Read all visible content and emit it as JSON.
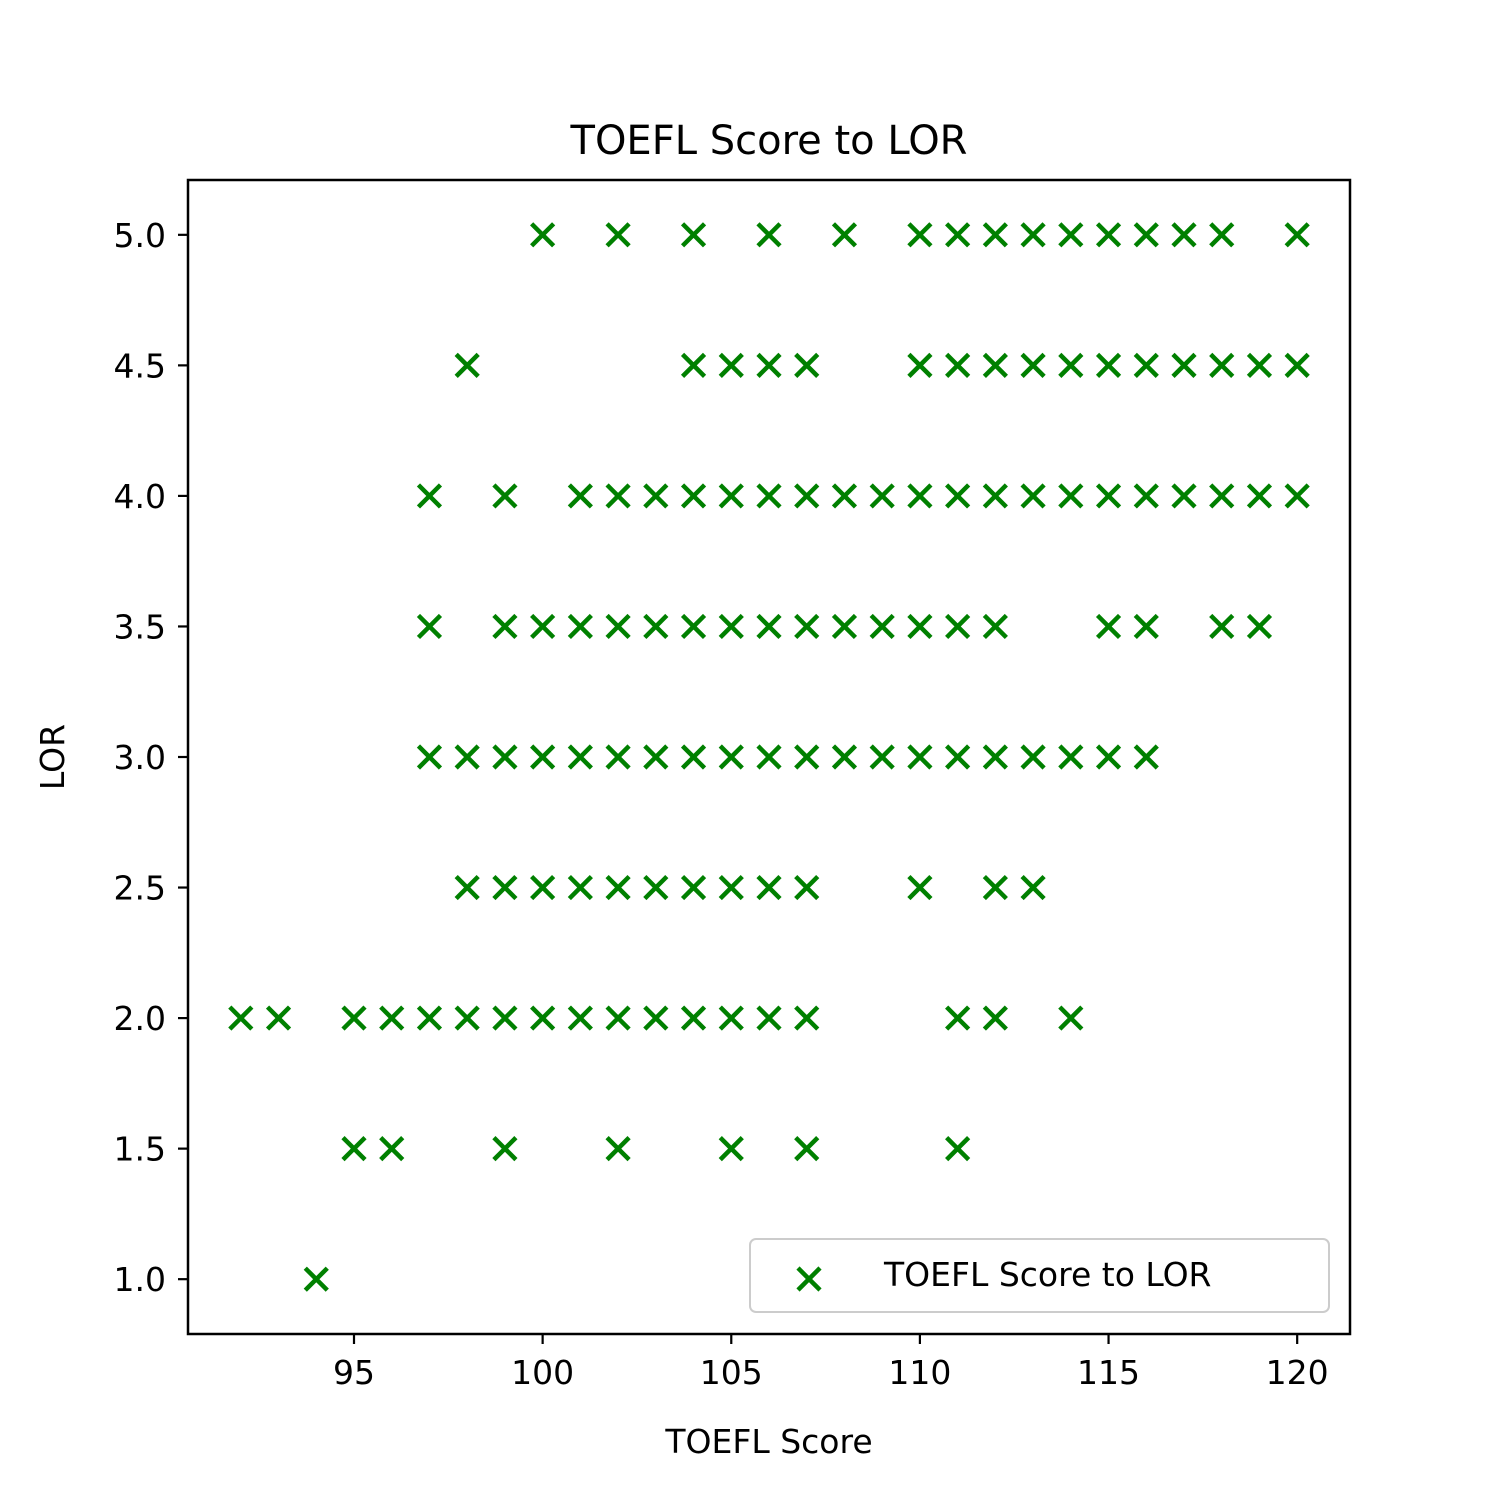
{
  "chart_data": {
    "type": "scatter",
    "title": "TOEFL Score to LOR",
    "xlabel": "TOEFL Score",
    "ylabel": "LOR",
    "xlim": [
      90.6,
      121.4
    ],
    "ylim": [
      0.79,
      5.21
    ],
    "xticks": [
      95,
      100,
      105,
      110,
      115,
      120
    ],
    "xtick_labels": [
      "95",
      "100",
      "105",
      "110",
      "115",
      "120"
    ],
    "yticks": [
      1.0,
      1.5,
      2.0,
      2.5,
      3.0,
      3.5,
      4.0,
      4.5,
      5.0
    ],
    "ytick_labels": [
      "1.0",
      "1.5",
      "2.0",
      "2.5",
      "3.0",
      "3.5",
      "4.0",
      "4.5",
      "5.0"
    ],
    "grid": false,
    "legend_position": "lower-right",
    "marker": "x",
    "series": [
      {
        "name": "TOEFL Score to LOR",
        "color": "#008000",
        "points": [
          [
            100,
            5.0
          ],
          [
            102,
            5.0
          ],
          [
            104,
            5.0
          ],
          [
            106,
            5.0
          ],
          [
            108,
            5.0
          ],
          [
            110,
            5.0
          ],
          [
            111,
            5.0
          ],
          [
            112,
            5.0
          ],
          [
            113,
            5.0
          ],
          [
            114,
            5.0
          ],
          [
            115,
            5.0
          ],
          [
            116,
            5.0
          ],
          [
            117,
            5.0
          ],
          [
            118,
            5.0
          ],
          [
            120,
            5.0
          ],
          [
            98,
            4.5
          ],
          [
            104,
            4.5
          ],
          [
            105,
            4.5
          ],
          [
            106,
            4.5
          ],
          [
            107,
            4.5
          ],
          [
            110,
            4.5
          ],
          [
            111,
            4.5
          ],
          [
            112,
            4.5
          ],
          [
            113,
            4.5
          ],
          [
            114,
            4.5
          ],
          [
            115,
            4.5
          ],
          [
            116,
            4.5
          ],
          [
            117,
            4.5
          ],
          [
            118,
            4.5
          ],
          [
            119,
            4.5
          ],
          [
            120,
            4.5
          ],
          [
            97,
            4.0
          ],
          [
            99,
            4.0
          ],
          [
            101,
            4.0
          ],
          [
            102,
            4.0
          ],
          [
            103,
            4.0
          ],
          [
            104,
            4.0
          ],
          [
            105,
            4.0
          ],
          [
            106,
            4.0
          ],
          [
            107,
            4.0
          ],
          [
            108,
            4.0
          ],
          [
            109,
            4.0
          ],
          [
            110,
            4.0
          ],
          [
            111,
            4.0
          ],
          [
            112,
            4.0
          ],
          [
            113,
            4.0
          ],
          [
            114,
            4.0
          ],
          [
            115,
            4.0
          ],
          [
            116,
            4.0
          ],
          [
            117,
            4.0
          ],
          [
            118,
            4.0
          ],
          [
            119,
            4.0
          ],
          [
            120,
            4.0
          ],
          [
            97,
            3.5
          ],
          [
            99,
            3.5
          ],
          [
            100,
            3.5
          ],
          [
            101,
            3.5
          ],
          [
            102,
            3.5
          ],
          [
            103,
            3.5
          ],
          [
            104,
            3.5
          ],
          [
            105,
            3.5
          ],
          [
            106,
            3.5
          ],
          [
            107,
            3.5
          ],
          [
            108,
            3.5
          ],
          [
            109,
            3.5
          ],
          [
            110,
            3.5
          ],
          [
            111,
            3.5
          ],
          [
            112,
            3.5
          ],
          [
            115,
            3.5
          ],
          [
            116,
            3.5
          ],
          [
            118,
            3.5
          ],
          [
            119,
            3.5
          ],
          [
            97,
            3.0
          ],
          [
            98,
            3.0
          ],
          [
            99,
            3.0
          ],
          [
            100,
            3.0
          ],
          [
            101,
            3.0
          ],
          [
            102,
            3.0
          ],
          [
            103,
            3.0
          ],
          [
            104,
            3.0
          ],
          [
            105,
            3.0
          ],
          [
            106,
            3.0
          ],
          [
            107,
            3.0
          ],
          [
            108,
            3.0
          ],
          [
            109,
            3.0
          ],
          [
            110,
            3.0
          ],
          [
            111,
            3.0
          ],
          [
            112,
            3.0
          ],
          [
            113,
            3.0
          ],
          [
            114,
            3.0
          ],
          [
            115,
            3.0
          ],
          [
            116,
            3.0
          ],
          [
            98,
            2.5
          ],
          [
            99,
            2.5
          ],
          [
            100,
            2.5
          ],
          [
            101,
            2.5
          ],
          [
            102,
            2.5
          ],
          [
            103,
            2.5
          ],
          [
            104,
            2.5
          ],
          [
            105,
            2.5
          ],
          [
            106,
            2.5
          ],
          [
            107,
            2.5
          ],
          [
            110,
            2.5
          ],
          [
            112,
            2.5
          ],
          [
            113,
            2.5
          ],
          [
            92,
            2.0
          ],
          [
            93,
            2.0
          ],
          [
            95,
            2.0
          ],
          [
            96,
            2.0
          ],
          [
            97,
            2.0
          ],
          [
            98,
            2.0
          ],
          [
            99,
            2.0
          ],
          [
            100,
            2.0
          ],
          [
            101,
            2.0
          ],
          [
            102,
            2.0
          ],
          [
            103,
            2.0
          ],
          [
            104,
            2.0
          ],
          [
            105,
            2.0
          ],
          [
            106,
            2.0
          ],
          [
            107,
            2.0
          ],
          [
            111,
            2.0
          ],
          [
            112,
            2.0
          ],
          [
            114,
            2.0
          ],
          [
            95,
            1.5
          ],
          [
            96,
            1.5
          ],
          [
            99,
            1.5
          ],
          [
            102,
            1.5
          ],
          [
            105,
            1.5
          ],
          [
            107,
            1.5
          ],
          [
            111,
            1.5
          ],
          [
            94,
            1.0
          ]
        ]
      }
    ]
  }
}
